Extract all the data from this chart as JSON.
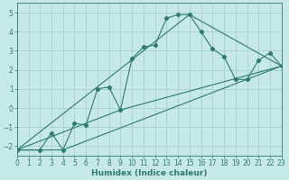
{
  "xlabel": "Humidex (Indice chaleur)",
  "bg_color": "#c6e8e6",
  "grid_color": "#a8cece",
  "line_color": "#2e7b6e",
  "spine_color": "#2e7b6e",
  "xlim": [
    0,
    23
  ],
  "ylim": [
    -2.5,
    5.5
  ],
  "xticks": [
    0,
    1,
    2,
    3,
    4,
    5,
    6,
    7,
    8,
    9,
    10,
    11,
    12,
    13,
    14,
    15,
    16,
    17,
    18,
    19,
    20,
    21,
    22,
    23
  ],
  "yticks": [
    -2,
    -1,
    0,
    1,
    2,
    3,
    4,
    5
  ],
  "series1_x": [
    0,
    2,
    3,
    4,
    5,
    6,
    7,
    8,
    9,
    10,
    11,
    12,
    13,
    14,
    15,
    16,
    17,
    18,
    19,
    20,
    21,
    22,
    23
  ],
  "series1_y": [
    -2.2,
    -2.2,
    -1.3,
    -2.2,
    -0.8,
    -0.9,
    1.0,
    1.1,
    -0.1,
    2.6,
    3.2,
    3.3,
    4.7,
    4.9,
    4.9,
    4.0,
    3.1,
    2.7,
    1.5,
    1.5,
    2.5,
    2.9,
    2.2
  ],
  "line2_x": [
    0,
    15,
    23
  ],
  "line2_y": [
    -2.2,
    4.9,
    2.2
  ],
  "line3_x": [
    0,
    9,
    23
  ],
  "line3_y": [
    -2.2,
    -0.1,
    2.2
  ],
  "line4_x": [
    0,
    4,
    23
  ],
  "line4_y": [
    -2.2,
    -2.2,
    2.2
  ],
  "tick_fontsize": 5.5,
  "xlabel_fontsize": 6.5,
  "marker": "D",
  "markersize": 2.2,
  "linewidth": 0.8
}
